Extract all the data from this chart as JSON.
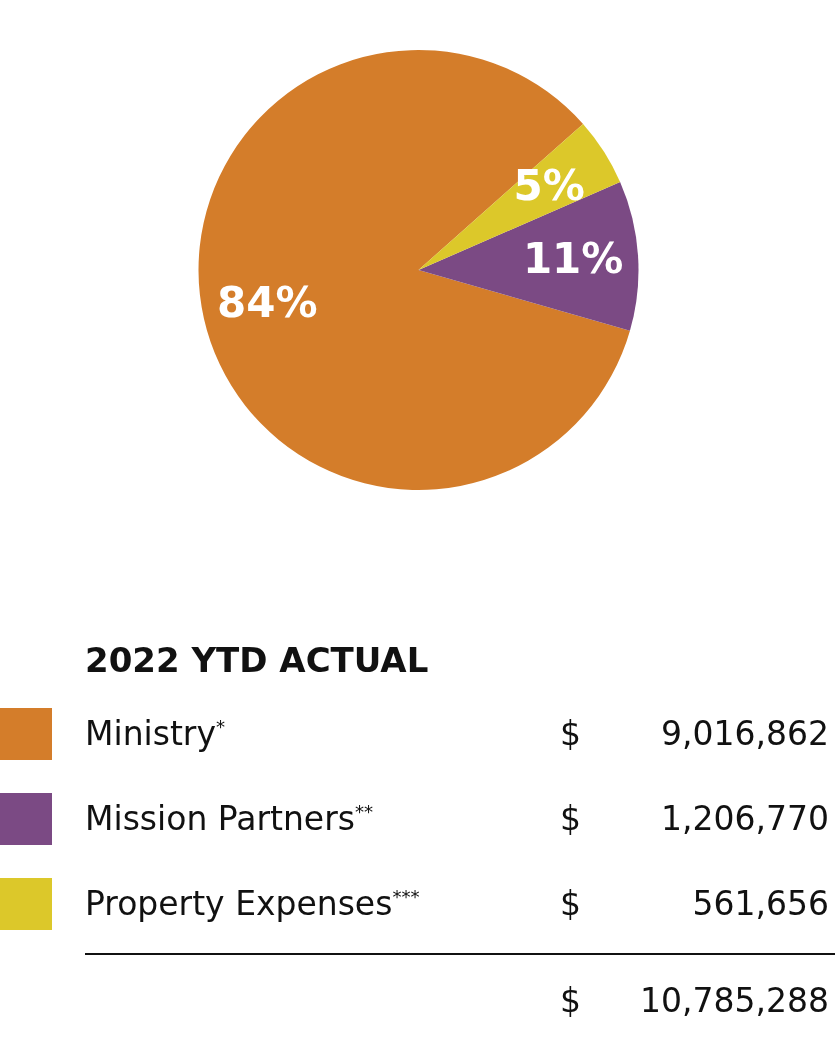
{
  "chart_data": {
    "type": "pie",
    "categories": [
      "Ministry$^{*}$",
      "Mission Partners$^{**}$",
      "Property Expenses$^{***}$"
    ],
    "values": [
      84,
      11,
      5
    ],
    "colors": [
      "#d47d2a",
      "#7b4a84",
      "#dcc82a"
    ],
    "value_labels": [
      "84%",
      "11%",
      "5%"
    ],
    "totals": [
      "$ 10,785,288"
    ],
    "legend_title": "2022 YTD ACTUAL",
    "legend": "bottom",
    "annotations": [
      {
        "text": "$ 9,016,862",
        "x": "Ministry$^{*}$"
      },
      {
        "text": "$ 1,206,770",
        "x": "Mission Partners$^{**}$"
      },
      {
        "text": "$ 561,656",
        "x": "Property Expenses$^{***}$"
      }
    ]
  }
}
